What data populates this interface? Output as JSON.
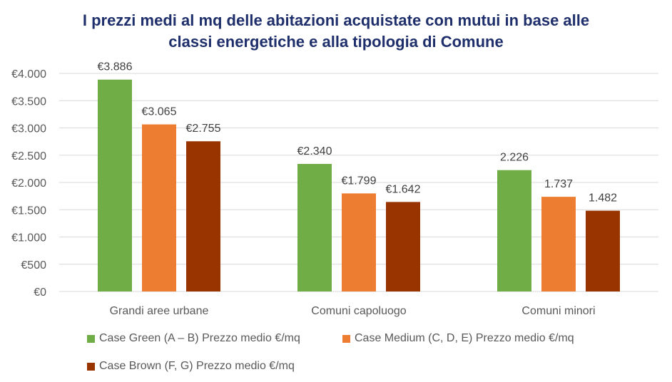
{
  "chart_data": {
    "type": "bar",
    "title_lines": [
      "I prezzi medi al mq delle abitazioni acquistate con mutui in base alle",
      "classi energetiche e alla tipologia di Comune"
    ],
    "categories": [
      "Grandi aree urbane",
      "Comuni capoluogo",
      "Comuni minori"
    ],
    "series": [
      {
        "name": "Case Green (A – B) Prezzo medio €/mq",
        "color": "#70ad47",
        "values": [
          3886,
          2340,
          2226
        ],
        "labels": [
          "€3.886",
          "€2.340",
          "2.226"
        ]
      },
      {
        "name": "Case Medium (C, D, E) Prezzo medio €/mq",
        "color": "#ed7d31",
        "values": [
          3065,
          1799,
          1737
        ],
        "labels": [
          "€3.065",
          "€1.799",
          "1.737"
        ]
      },
      {
        "name": "Case Brown (F, G) Prezzo medio €/mq",
        "color": "#993300",
        "values": [
          2755,
          1642,
          1482
        ],
        "labels": [
          "€2.755",
          "€1.642",
          "1.482"
        ]
      }
    ],
    "ylim": [
      0,
      4000
    ],
    "yticks": [
      0,
      500,
      1000,
      1500,
      2000,
      2500,
      3000,
      3500,
      4000
    ],
    "ytick_labels": [
      "€0",
      "€500",
      "€1.000",
      "€1.500",
      "€2.000",
      "€2.500",
      "€3.000",
      "€3.500",
      "€4.000"
    ],
    "grid": true,
    "legend_position": "bottom",
    "gridline_color": "#d9d9d9",
    "axis_text_color": "#595959"
  }
}
